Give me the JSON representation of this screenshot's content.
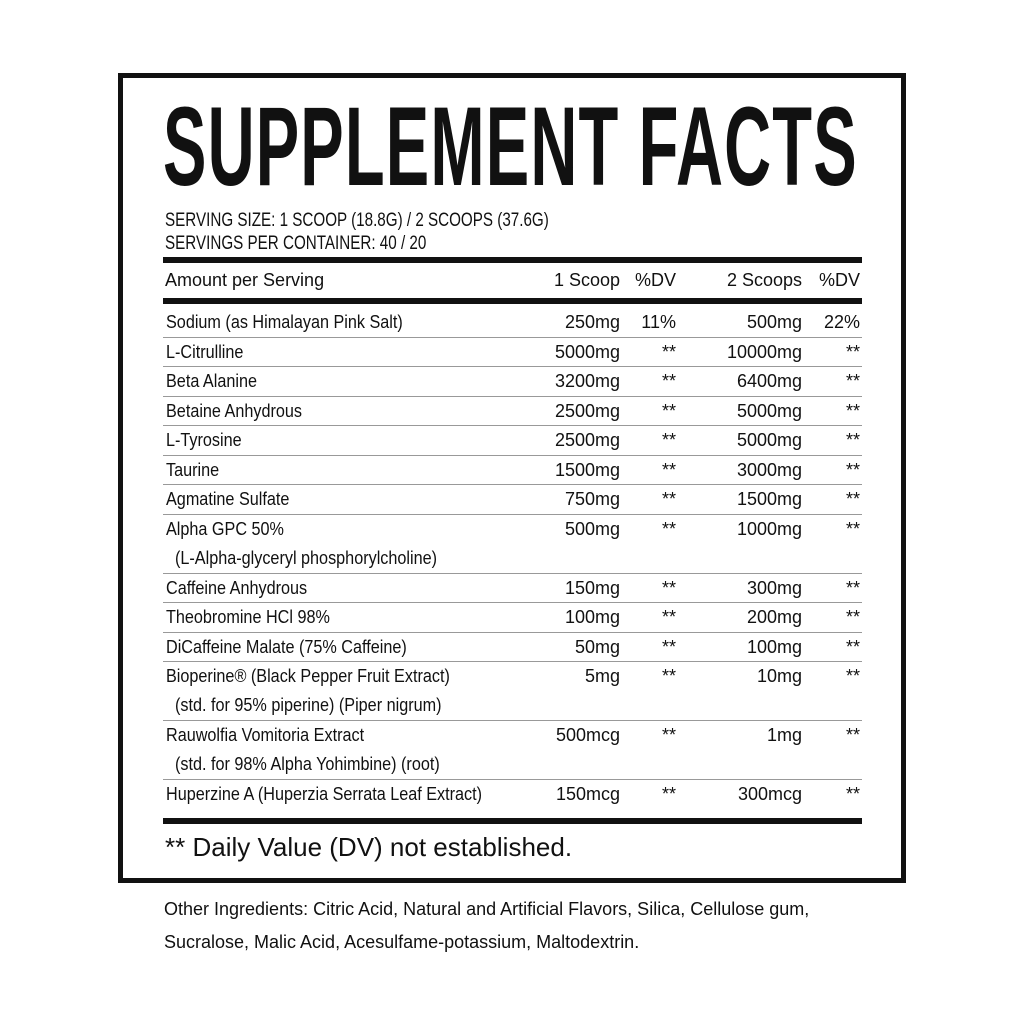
{
  "title": "SUPPLEMENT FACTS",
  "serving_size": "SERVING SIZE:  1 SCOOP (18.8G) / 2 SCOOPS (37.6G)",
  "servings_per_container": "SERVINGS PER CONTAINER:  40 / 20",
  "header": {
    "name": "Amount per Serving",
    "amount1": "1 Scoop",
    "dv1": "%DV",
    "amount2": "2 Scoops",
    "dv2": "%DV"
  },
  "rows": [
    {
      "name": "Sodium (as Himalayan Pink Salt)",
      "a1": "250mg",
      "d1": "11%",
      "a2": "500mg",
      "d2": "22%"
    },
    {
      "name": "L-Citrulline",
      "a1": "5000mg",
      "d1": "**",
      "a2": "10000mg",
      "d2": "**"
    },
    {
      "name": "Beta Alanine",
      "a1": "3200mg",
      "d1": "**",
      "a2": "6400mg",
      "d2": "**"
    },
    {
      "name": "Betaine Anhydrous",
      "a1": "2500mg",
      "d1": "**",
      "a2": "5000mg",
      "d2": "**"
    },
    {
      "name": "L-Tyrosine",
      "a1": "2500mg",
      "d1": "**",
      "a2": "5000mg",
      "d2": "**"
    },
    {
      "name": "Taurine",
      "a1": "1500mg",
      "d1": "**",
      "a2": "3000mg",
      "d2": "**"
    },
    {
      "name": "Agmatine Sulfate",
      "a1": "750mg",
      "d1": "**",
      "a2": "1500mg",
      "d2": "**"
    },
    {
      "name": "Alpha GPC 50%",
      "sub": "(L-Alpha-glyceryl phosphorylcholine)",
      "a1": "500mg",
      "d1": "**",
      "a2": "1000mg",
      "d2": "**"
    },
    {
      "name": "Caffeine Anhydrous",
      "a1": "150mg",
      "d1": "**",
      "a2": "300mg",
      "d2": "**"
    },
    {
      "name": "Theobromine HCl 98%",
      "a1": "100mg",
      "d1": "**",
      "a2": "200mg",
      "d2": "**"
    },
    {
      "name": "DiCaffeine Malate (75% Caffeine)",
      "a1": "50mg",
      "d1": "**",
      "a2": "100mg",
      "d2": "**"
    },
    {
      "name": "Bioperine® (Black Pepper Fruit Extract)",
      "sub": "(std. for 95% piperine) (Piper nigrum)",
      "a1": "5mg",
      "d1": "**",
      "a2": "10mg",
      "d2": "**"
    },
    {
      "name": "Rauwolfia Vomitoria Extract",
      "sub": "(std. for 98% Alpha Yohimbine) (root)",
      "a1": "500mcg",
      "d1": "**",
      "a2": "1mg",
      "d2": "**"
    },
    {
      "name": "Huperzine A (Huperzia Serrata Leaf Extract)",
      "a1": "150mcg",
      "d1": "**",
      "a2": "300mcg",
      "d2": "**"
    }
  ],
  "footnote": "** Daily Value (DV) not established.",
  "other_ingredients": "Other Ingredients:  Citric Acid, Natural and Artificial Flavors, Silica, Cellulose gum, Sucralose, Malic Acid, Acesulfame-potassium, Maltodextrin."
}
